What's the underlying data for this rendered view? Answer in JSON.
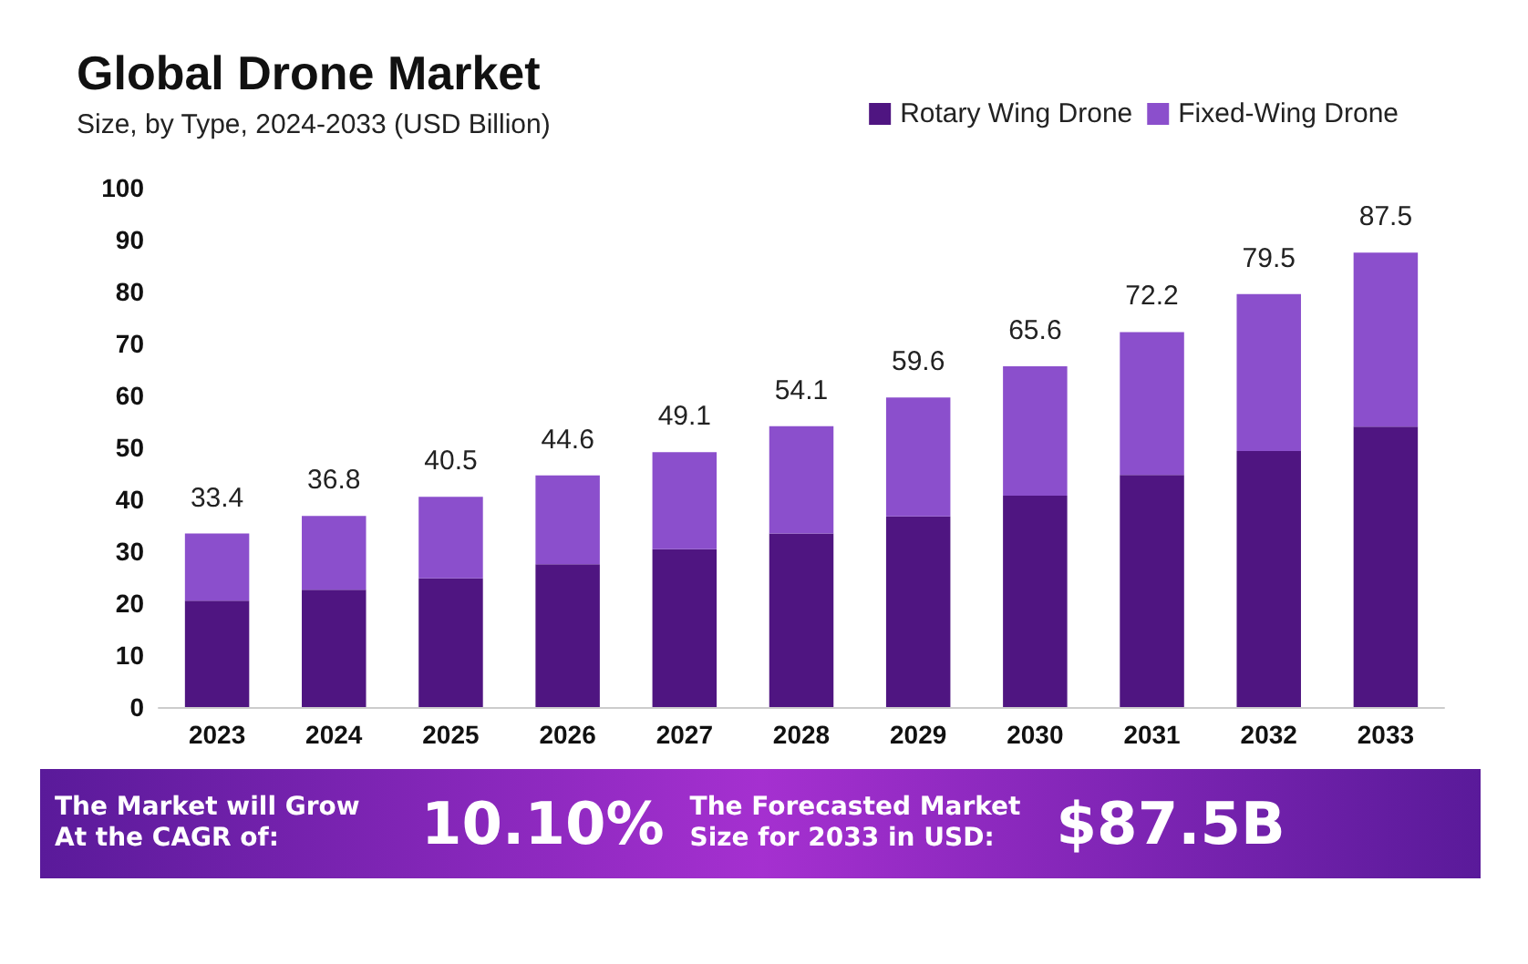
{
  "chart_data": {
    "type": "bar",
    "title": "Global Drone Market",
    "subtitle": "Size, by Type, 2024-2033 (USD Billion)",
    "categories": [
      "2023",
      "2024",
      "2025",
      "2026",
      "2027",
      "2028",
      "2029",
      "2030",
      "2031",
      "2032",
      "2033"
    ],
    "series": [
      {
        "name": "Rotary Wing Drone",
        "color": "#4f1581",
        "values": [
          20.5,
          22.6,
          24.8,
          27.5,
          30.4,
          33.4,
          36.7,
          40.7,
          44.7,
          49.3,
          54.0
        ]
      },
      {
        "name": "Fixed-Wing Drone",
        "color": "#8b4fcc",
        "values": [
          12.9,
          14.2,
          15.7,
          17.1,
          18.7,
          20.7,
          22.9,
          24.9,
          27.5,
          30.2,
          33.5
        ]
      }
    ],
    "stacked": true,
    "totals": [
      "33.4",
      "36.8",
      "40.5",
      "44.6",
      "49.1",
      "54.1",
      "59.6",
      "65.6",
      "72.2",
      "79.5",
      "87.5"
    ],
    "ylim": [
      0,
      100
    ],
    "yticks": [
      0,
      10,
      20,
      30,
      40,
      50,
      60,
      70,
      80,
      90,
      100
    ],
    "grid": false,
    "legend": "top right",
    "annotations": [
      "The Market will Grow At the CAGR of:",
      "10.10%",
      "The Forecasted Market Size for 2033 in USD:",
      "$87.5B"
    ]
  }
}
